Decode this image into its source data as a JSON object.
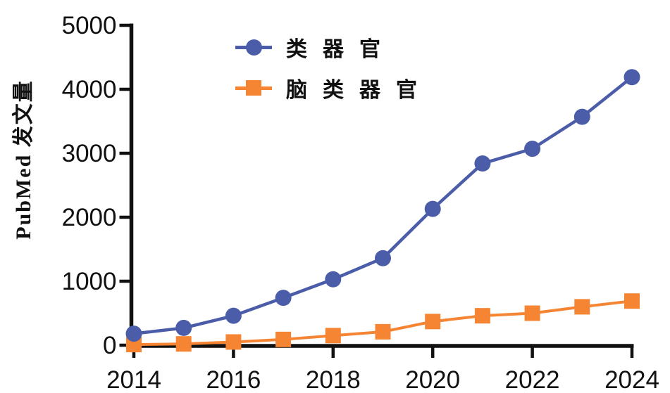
{
  "figure": {
    "background": "#ffffff",
    "axis_color": "#111111",
    "text_color": "#111111"
  },
  "chart_data": {
    "type": "line",
    "title": "",
    "xlabel": "",
    "ylabel": "PubMed 发文量",
    "x": [
      2014,
      2015,
      2016,
      2017,
      2018,
      2019,
      2020,
      2021,
      2022,
      2023,
      2024
    ],
    "x_tick_labels": [
      2014,
      2016,
      2018,
      2020,
      2022,
      2024
    ],
    "y_ticks": [
      0,
      1000,
      2000,
      3000,
      4000,
      5000
    ],
    "xlim": [
      2014,
      2024
    ],
    "ylim": [
      0,
      5000
    ],
    "grid": false,
    "legend": {
      "position": "upper-left-inside",
      "entries": [
        "类器官",
        "脑类器官"
      ]
    },
    "series": [
      {
        "name": "类器官",
        "marker": "circle",
        "color": "#4B5DA9",
        "values": [
          180,
          270,
          460,
          740,
          1030,
          1360,
          2130,
          2840,
          3070,
          3570,
          4190
        ]
      },
      {
        "name": "脑类器官",
        "marker": "square",
        "color": "#F58532",
        "values": [
          10,
          20,
          50,
          90,
          150,
          210,
          370,
          460,
          500,
          600,
          690
        ]
      }
    ]
  }
}
